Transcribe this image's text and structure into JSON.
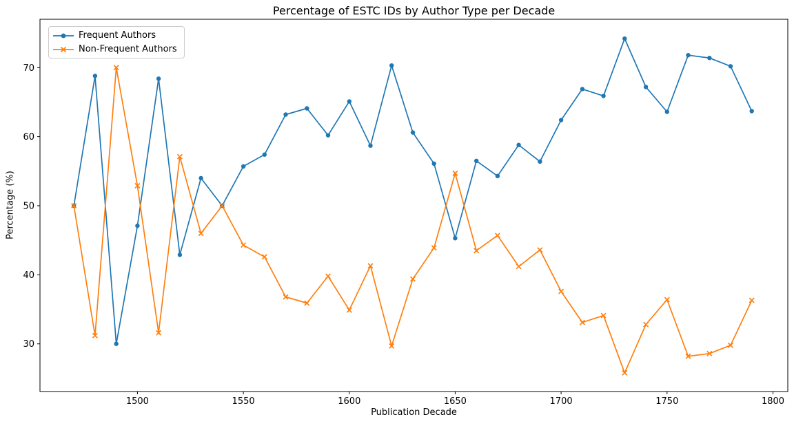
{
  "chart_data": {
    "type": "line",
    "title": "Percentage of ESTC IDs by Author Type per Decade",
    "xlabel": "Publication Decade",
    "ylabel": "Percentage (%)",
    "x": [
      1470,
      1480,
      1490,
      1500,
      1510,
      1520,
      1530,
      1540,
      1550,
      1560,
      1570,
      1580,
      1590,
      1600,
      1610,
      1620,
      1630,
      1640,
      1650,
      1660,
      1670,
      1680,
      1690,
      1700,
      1710,
      1720,
      1730,
      1740,
      1750,
      1760,
      1770,
      1780,
      1790
    ],
    "series": [
      {
        "name": "Frequent Authors",
        "color": "#1f77b4",
        "marker": "circle",
        "values": [
          50.0,
          68.8,
          30.0,
          47.1,
          68.4,
          42.9,
          54.0,
          50.0,
          55.7,
          57.4,
          63.2,
          64.1,
          60.2,
          65.1,
          58.7,
          70.3,
          60.6,
          56.1,
          45.3,
          56.5,
          54.3,
          58.8,
          56.4,
          62.4,
          66.9,
          65.9,
          74.2,
          67.2,
          63.6,
          71.8,
          71.4,
          70.2,
          63.7
        ]
      },
      {
        "name": "Non-Frequent Authors",
        "color": "#ff7f0e",
        "marker": "x",
        "values": [
          50.0,
          31.2,
          70.0,
          52.9,
          31.6,
          57.1,
          46.0,
          50.0,
          44.3,
          42.6,
          36.8,
          35.9,
          39.8,
          34.9,
          41.3,
          29.7,
          39.4,
          43.9,
          54.7,
          43.5,
          45.7,
          41.2,
          43.6,
          37.6,
          33.1,
          34.1,
          25.8,
          32.8,
          36.4,
          28.2,
          28.6,
          29.8,
          36.3
        ]
      }
    ],
    "xlim": [
      1454,
      1807
    ],
    "ylim": [
      23.1,
      77.0
    ],
    "xticks": [
      1500,
      1550,
      1600,
      1650,
      1700,
      1750,
      1800
    ],
    "yticks": [
      30,
      40,
      50,
      60,
      70
    ],
    "grid": false,
    "legend_position": "upper-left",
    "axis_color": "#000000",
    "background_color": "#ffffff",
    "legend_border_color": "#cccccc"
  }
}
